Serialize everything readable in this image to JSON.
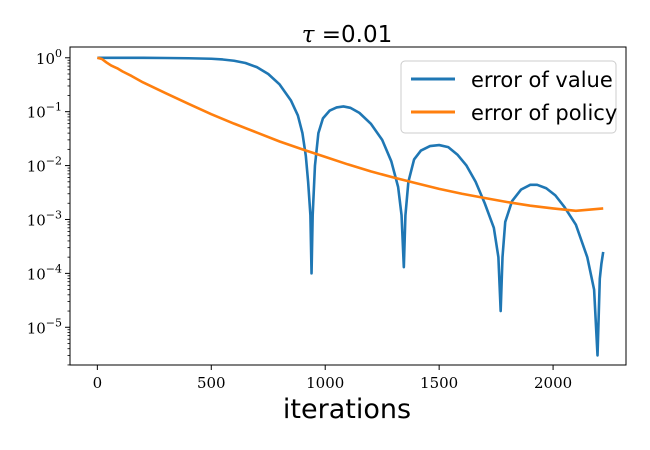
{
  "chart_data": {
    "type": "line",
    "title_symbol": "τ",
    "title_rest": " =0.01",
    "xlabel": "iterations",
    "ylabel": "",
    "xlim": [
      -120,
      2320
    ],
    "ylim_log10": [
      -5.7,
      0.2
    ],
    "y_scale": "log",
    "grid": false,
    "legend_position": "top-right",
    "x_ticks": [
      0,
      500,
      1000,
      1500,
      2000
    ],
    "y_ticks": [
      {
        "exp": 0,
        "label": "10",
        "sup": "0"
      },
      {
        "exp": -1,
        "label": "10",
        "sup": "−1"
      },
      {
        "exp": -2,
        "label": "10",
        "sup": "−2"
      },
      {
        "exp": -3,
        "label": "10",
        "sup": "−3"
      },
      {
        "exp": -4,
        "label": "10",
        "sup": "−4"
      },
      {
        "exp": -5,
        "label": "10",
        "sup": "−5"
      }
    ],
    "series": [
      {
        "name": "error of value",
        "color": "#1f77b4",
        "points": [
          [
            0,
            1.0
          ],
          [
            100,
            1.0
          ],
          [
            200,
            1.0
          ],
          [
            300,
            0.99
          ],
          [
            400,
            0.98
          ],
          [
            500,
            0.96
          ],
          [
            550,
            0.93
          ],
          [
            600,
            0.88
          ],
          [
            650,
            0.8
          ],
          [
            700,
            0.67
          ],
          [
            750,
            0.5
          ],
          [
            800,
            0.32
          ],
          [
            850,
            0.16
          ],
          [
            880,
            0.085
          ],
          [
            900,
            0.04
          ],
          [
            915,
            0.015
          ],
          [
            925,
            0.005
          ],
          [
            935,
            0.0012
          ],
          [
            940,
            0.0001
          ],
          [
            945,
            0.0012
          ],
          [
            955,
            0.01
          ],
          [
            970,
            0.04
          ],
          [
            990,
            0.075
          ],
          [
            1020,
            0.105
          ],
          [
            1050,
            0.12
          ],
          [
            1080,
            0.125
          ],
          [
            1110,
            0.118
          ],
          [
            1150,
            0.095
          ],
          [
            1200,
            0.06
          ],
          [
            1250,
            0.03
          ],
          [
            1290,
            0.012
          ],
          [
            1320,
            0.004
          ],
          [
            1335,
            0.0012
          ],
          [
            1345,
            0.00013
          ],
          [
            1352,
            0.0012
          ],
          [
            1365,
            0.005
          ],
          [
            1390,
            0.013
          ],
          [
            1420,
            0.019
          ],
          [
            1460,
            0.023
          ],
          [
            1500,
            0.024
          ],
          [
            1540,
            0.022
          ],
          [
            1580,
            0.016
          ],
          [
            1620,
            0.01
          ],
          [
            1660,
            0.005
          ],
          [
            1700,
            0.002
          ],
          [
            1740,
            0.0007
          ],
          [
            1760,
            0.0002
          ],
          [
            1770,
            2e-05
          ],
          [
            1778,
            0.0002
          ],
          [
            1790,
            0.0009
          ],
          [
            1820,
            0.0022
          ],
          [
            1860,
            0.0036
          ],
          [
            1900,
            0.0044
          ],
          [
            1930,
            0.0044
          ],
          [
            1970,
            0.0038
          ],
          [
            2010,
            0.0028
          ],
          [
            2050,
            0.0017
          ],
          [
            2100,
            0.0008
          ],
          [
            2150,
            0.0002
          ],
          [
            2180,
            5e-05
          ],
          [
            2195,
            3e-06
          ],
          [
            2205,
            8e-05
          ],
          [
            2212,
            0.00015
          ],
          [
            2220,
            0.00025
          ]
        ]
      },
      {
        "name": "error of policy",
        "color": "#ff7f0e",
        "points": [
          [
            0,
            1.0
          ],
          [
            20,
            0.95
          ],
          [
            40,
            0.82
          ],
          [
            60,
            0.72
          ],
          [
            80,
            0.66
          ],
          [
            90,
            0.63
          ],
          [
            110,
            0.56
          ],
          [
            150,
            0.46
          ],
          [
            200,
            0.35
          ],
          [
            300,
            0.22
          ],
          [
            400,
            0.14
          ],
          [
            500,
            0.09
          ],
          [
            600,
            0.06
          ],
          [
            700,
            0.041
          ],
          [
            800,
            0.028
          ],
          [
            900,
            0.02
          ],
          [
            1000,
            0.0145
          ],
          [
            1100,
            0.0105
          ],
          [
            1200,
            0.0078
          ],
          [
            1300,
            0.006
          ],
          [
            1400,
            0.0047
          ],
          [
            1500,
            0.0037
          ],
          [
            1600,
            0.003
          ],
          [
            1700,
            0.0025
          ],
          [
            1800,
            0.0021
          ],
          [
            1900,
            0.0018
          ],
          [
            2000,
            0.0016
          ],
          [
            2100,
            0.00145
          ],
          [
            2220,
            0.0016
          ]
        ]
      }
    ]
  }
}
